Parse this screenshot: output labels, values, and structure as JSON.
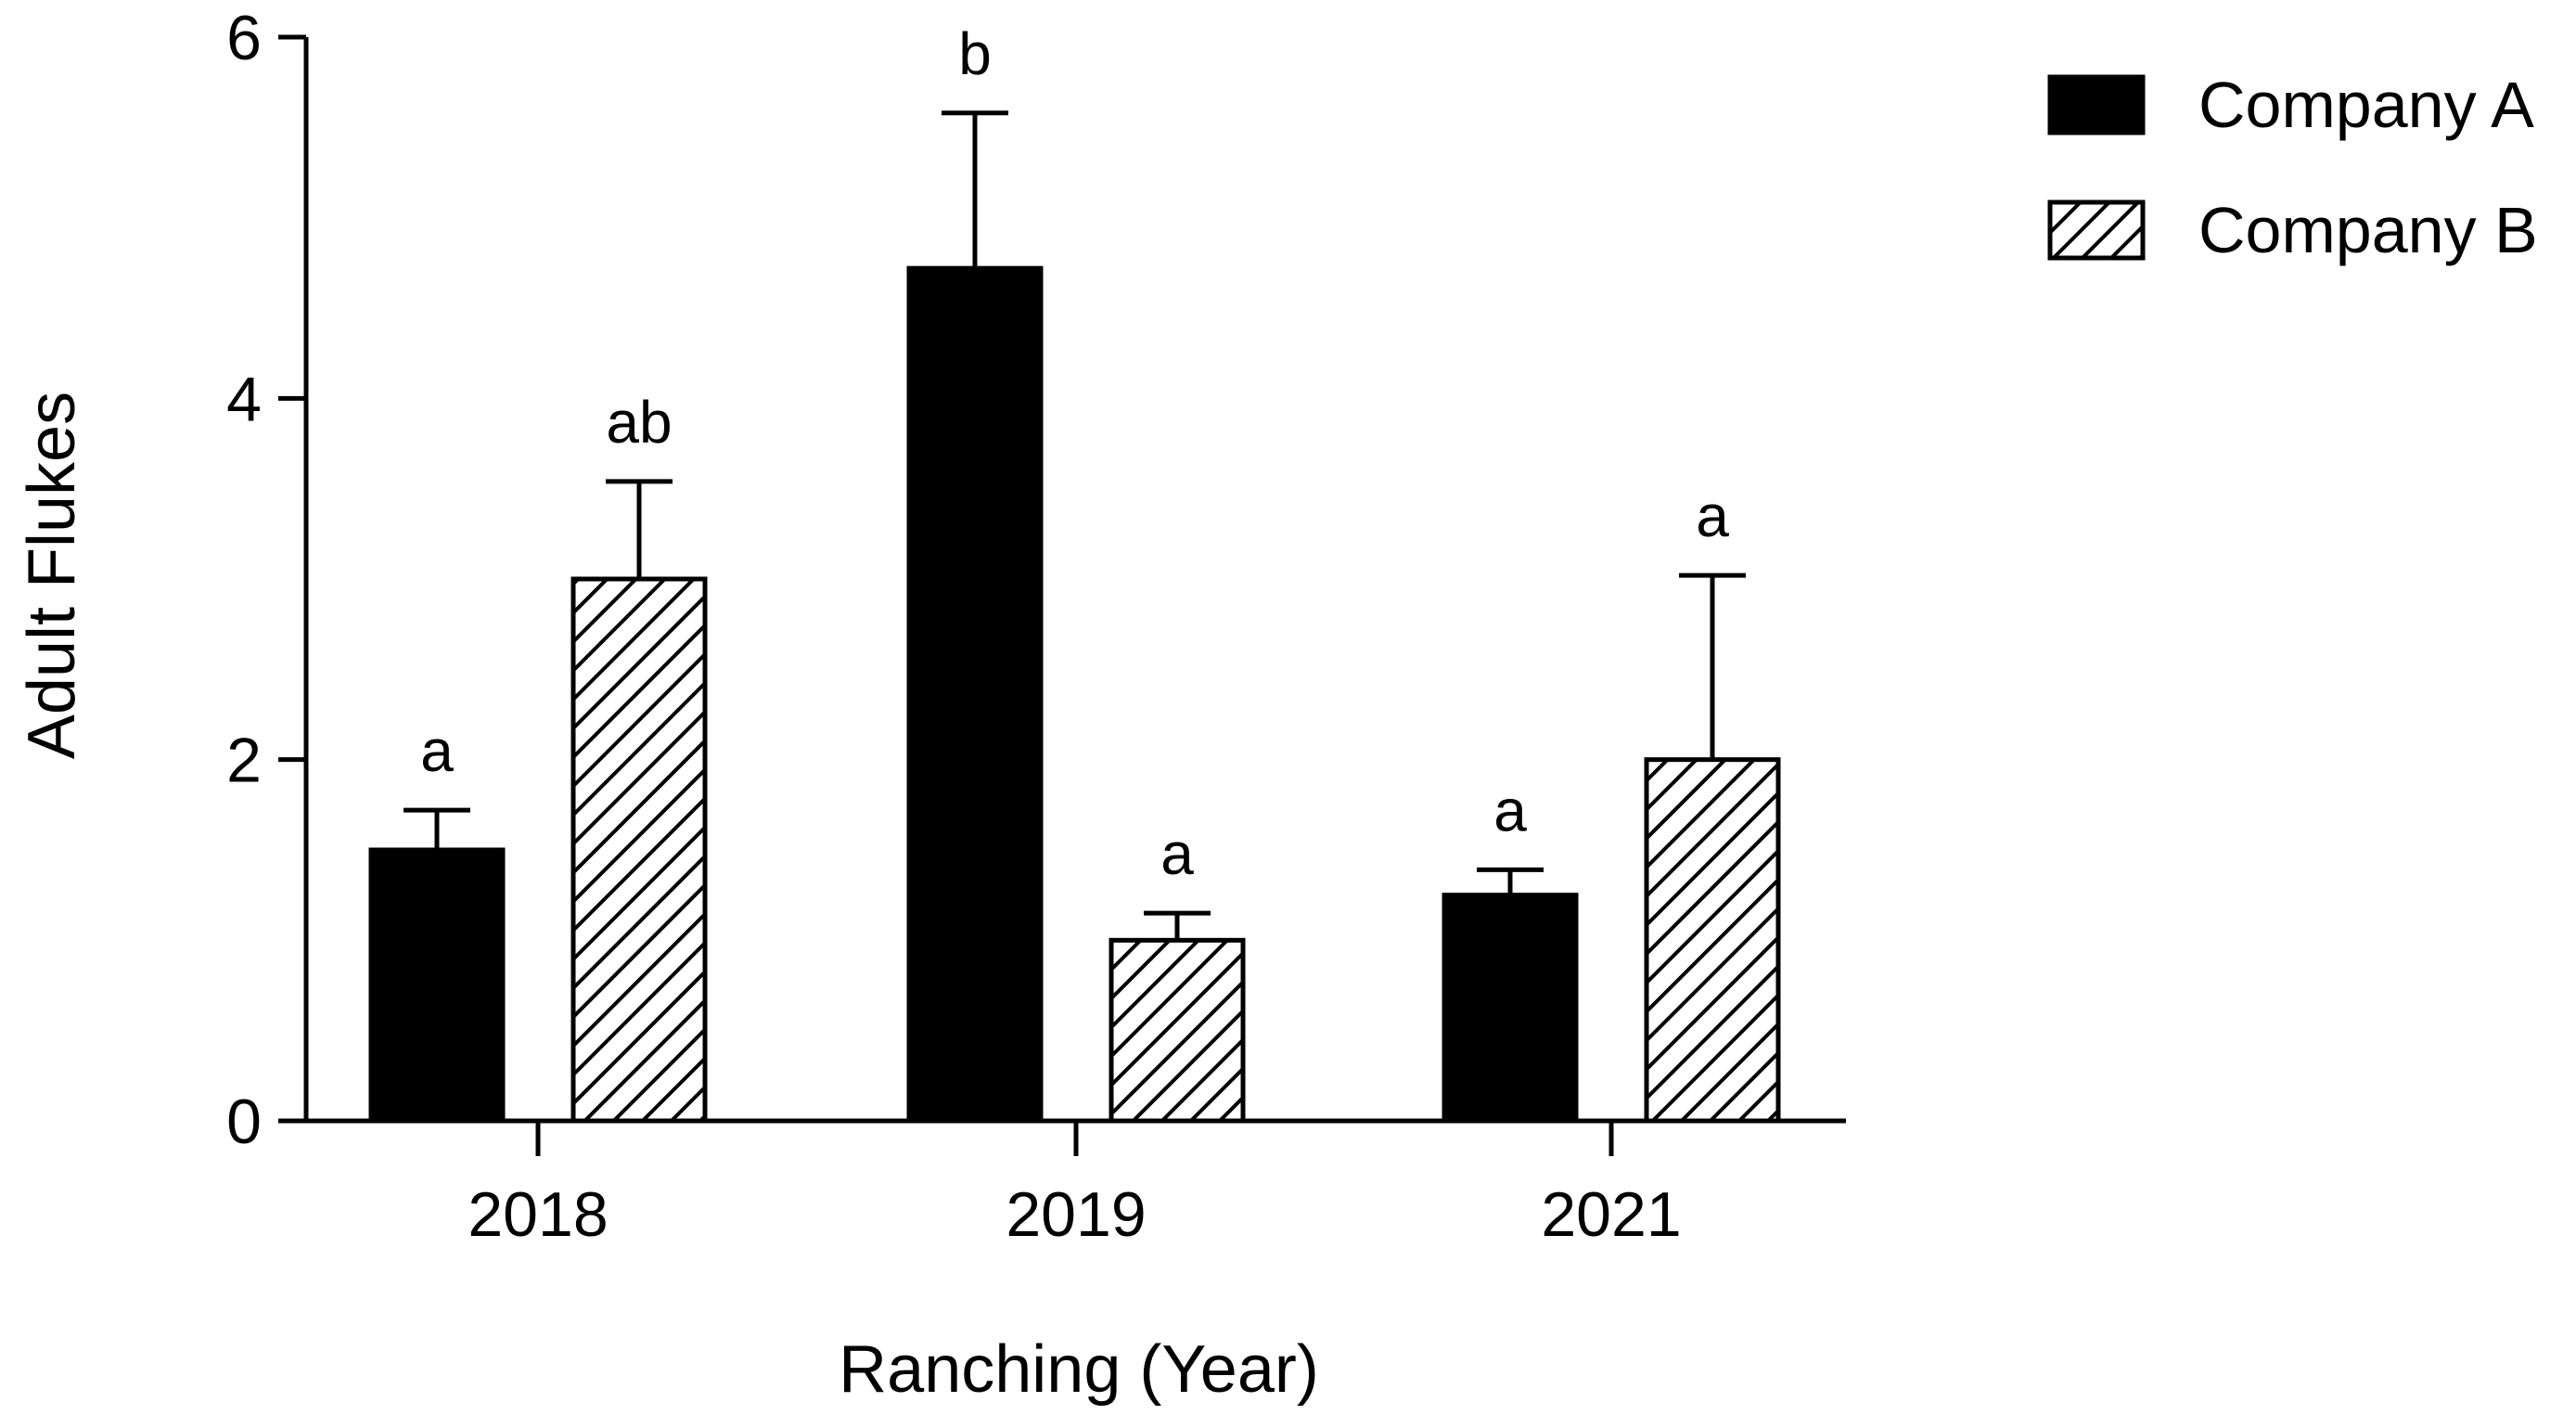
{
  "chart_data": {
    "type": "bar",
    "title": "",
    "xlabel": "Ranching (Year)",
    "ylabel": "Adult Flukes",
    "ylim": [
      0,
      6
    ],
    "yticks": [
      "0",
      "2",
      "4",
      "6"
    ],
    "categories": [
      "2018",
      "2019",
      "2021"
    ],
    "grid": false,
    "legend_position": "top-right",
    "series": [
      {
        "name": "Company A",
        "fill": "solid",
        "color": "#000000",
        "values": [
          1.5,
          4.72,
          1.25
        ],
        "errors": [
          0.22,
          0.86,
          0.14
        ],
        "significance": [
          "a",
          "b",
          "a"
        ]
      },
      {
        "name": "Company B",
        "fill": "hatched",
        "color": "#000000",
        "values": [
          3.0,
          1.0,
          2.0
        ],
        "errors": [
          0.54,
          0.15,
          1.02
        ],
        "significance": [
          "ab",
          "a",
          "a"
        ]
      }
    ]
  }
}
